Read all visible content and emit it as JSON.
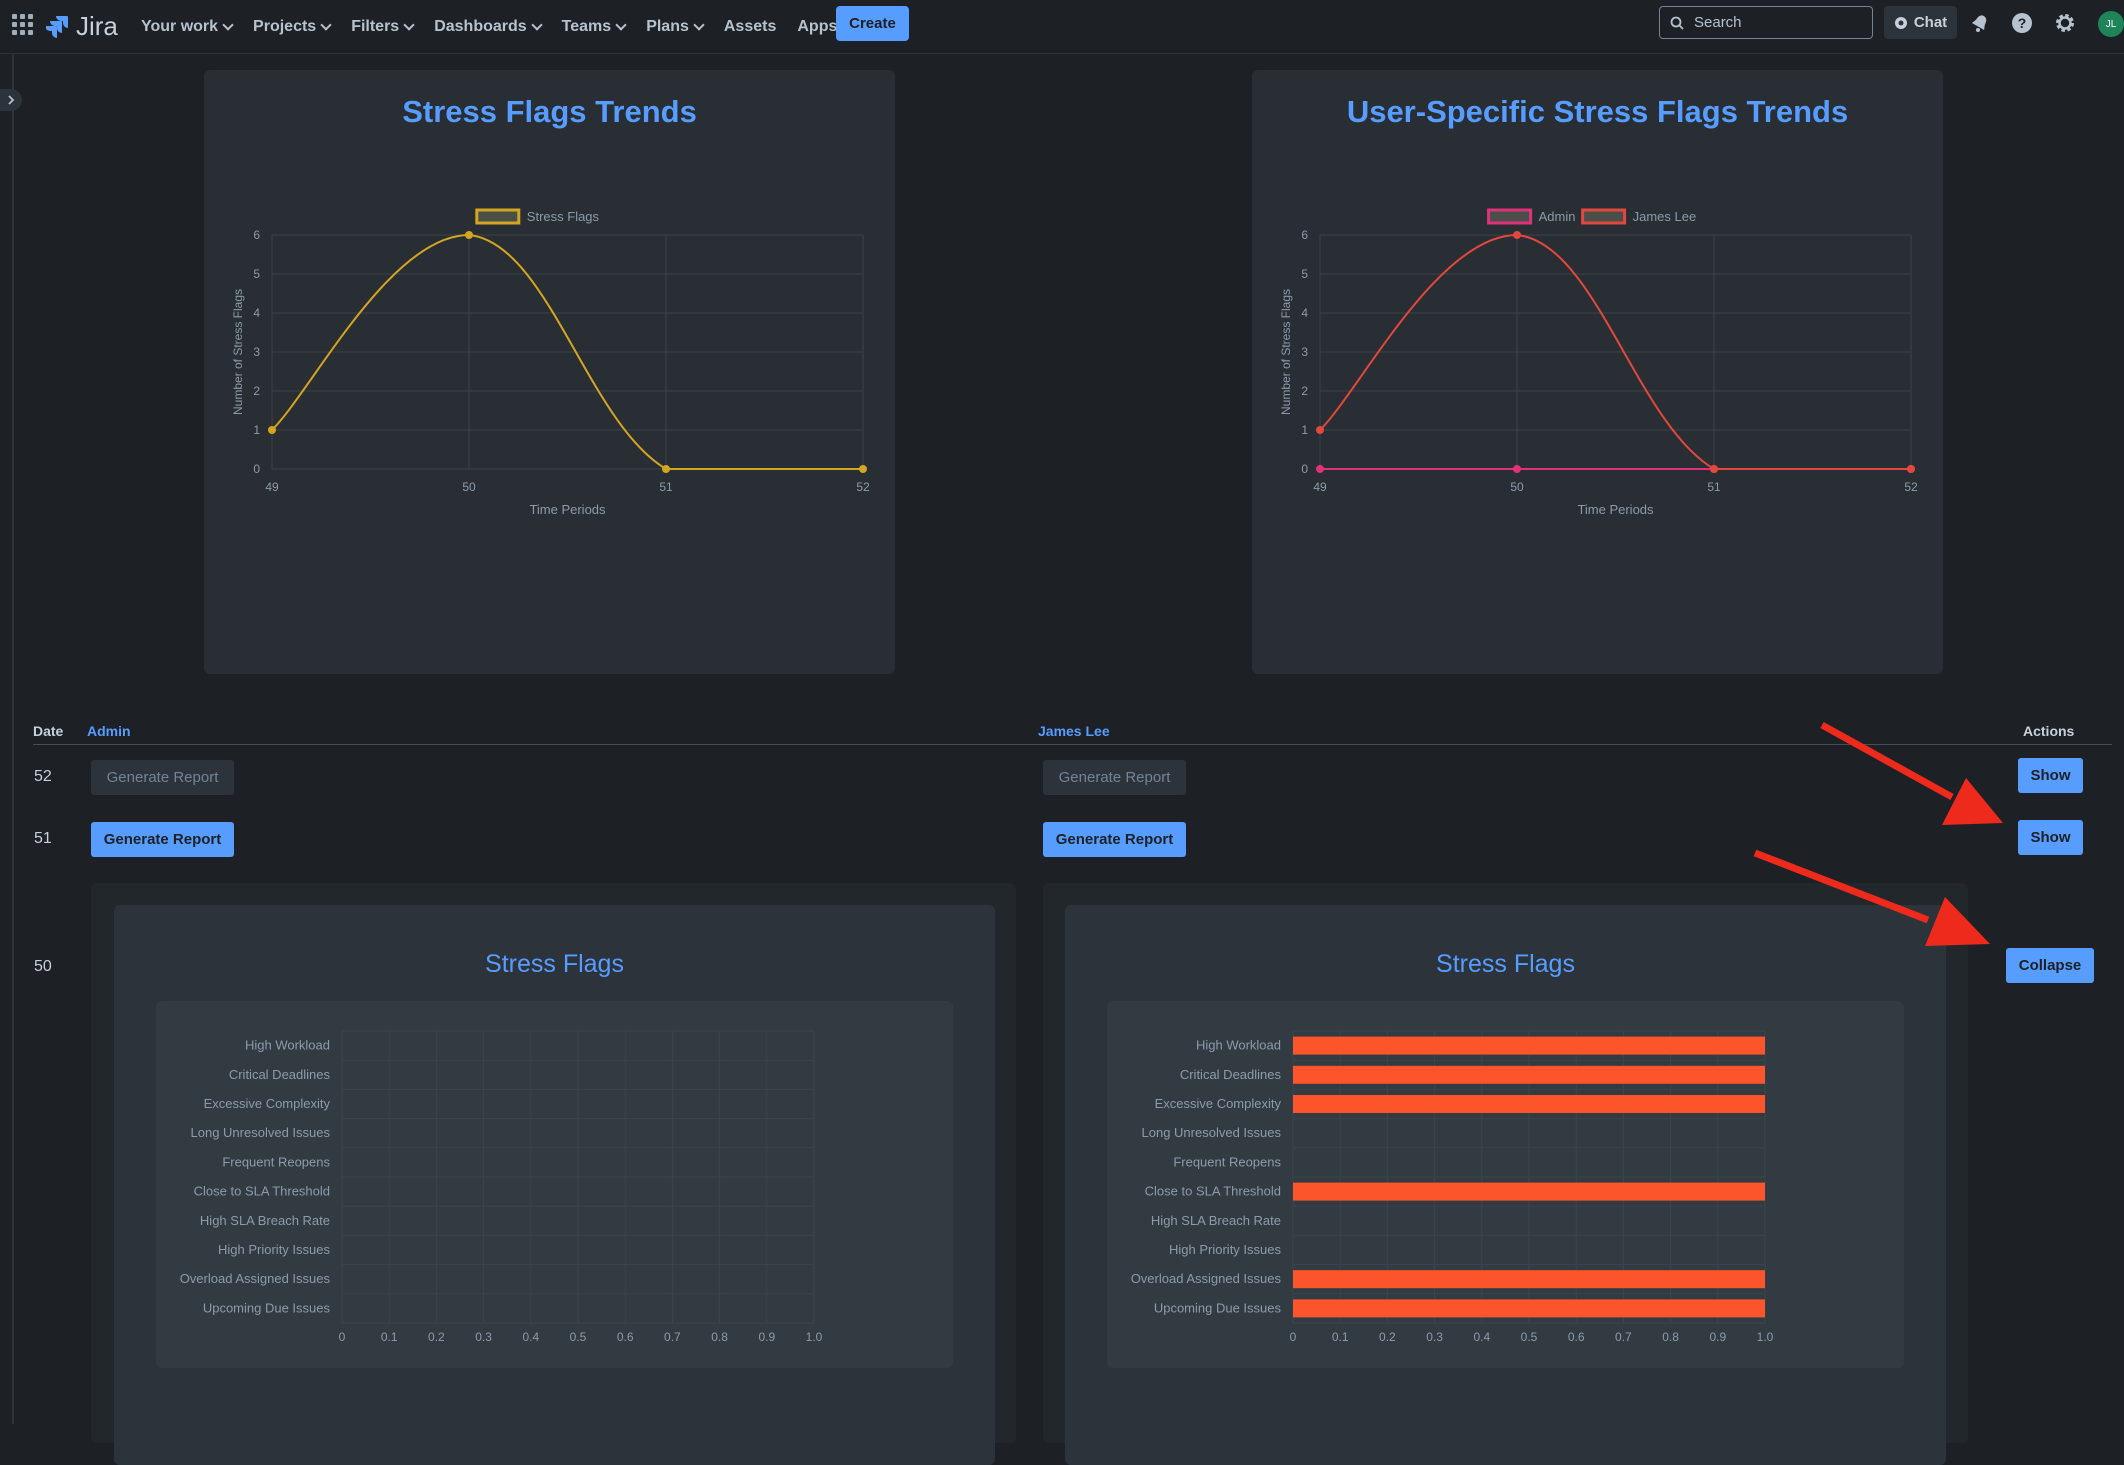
{
  "nav": {
    "logo": "Jira",
    "items": [
      {
        "label": "Your work",
        "dropdown": true
      },
      {
        "label": "Projects",
        "dropdown": true
      },
      {
        "label": "Filters",
        "dropdown": true
      },
      {
        "label": "Dashboards",
        "dropdown": true
      },
      {
        "label": "Teams",
        "dropdown": true
      },
      {
        "label": "Plans",
        "dropdown": true
      },
      {
        "label": "Assets",
        "dropdown": false
      },
      {
        "label": "Apps",
        "dropdown": true
      }
    ],
    "create_label": "Create",
    "search_placeholder": "Search",
    "chat_label": "Chat",
    "avatar_initials": "JL"
  },
  "colors": {
    "accent": "#579dff",
    "yellow_series": "#d4a520",
    "red_series": "#e2483d",
    "pink_series": "#e0317a",
    "bar_fill": "#fc552c"
  },
  "chart_data": [
    {
      "type": "line",
      "title": "Stress Flags Trends",
      "xlabel": "Time Periods",
      "ylabel": "Number of Stress Flags",
      "x": [
        49,
        50,
        51,
        52
      ],
      "ylim": [
        0,
        6
      ],
      "yticks": [
        0,
        1,
        2,
        3,
        4,
        5,
        6
      ],
      "legend_position": "top",
      "series": [
        {
          "name": "Stress Flags",
          "values": [
            1,
            6,
            0,
            0
          ],
          "color": "#d4a520"
        }
      ]
    },
    {
      "type": "line",
      "title": "User-Specific Stress Flags Trends",
      "xlabel": "Time Periods",
      "ylabel": "Number of Stress Flags",
      "x": [
        49,
        50,
        51,
        52
      ],
      "ylim": [
        0,
        6
      ],
      "yticks": [
        0,
        1,
        2,
        3,
        4,
        5,
        6
      ],
      "legend_position": "top",
      "series": [
        {
          "name": "Admin",
          "values": [
            0,
            0,
            0,
            0
          ],
          "color": "#e0317a"
        },
        {
          "name": "James Lee",
          "values": [
            1,
            6,
            0,
            0
          ],
          "color": "#e2483d"
        }
      ]
    },
    {
      "type": "bar",
      "orientation": "horizontal",
      "title": "Stress Flags",
      "categories": [
        "High Workload",
        "Critical Deadlines",
        "Excessive Complexity",
        "Long Unresolved Issues",
        "Frequent Reopens",
        "Close to SLA Threshold",
        "High SLA Breach Rate",
        "High Priority Issues",
        "Overload Assigned Issues",
        "Upcoming Due Issues"
      ],
      "values": [
        0,
        0,
        0,
        0,
        0,
        0,
        0,
        0,
        0,
        0
      ],
      "xlim": [
        0,
        1
      ],
      "xticks": [
        "0",
        "0.1",
        "0.2",
        "0.3",
        "0.4",
        "0.5",
        "0.6",
        "0.7",
        "0.8",
        "0.9",
        "1.0"
      ]
    },
    {
      "type": "bar",
      "orientation": "horizontal",
      "title": "Stress Flags",
      "categories": [
        "High Workload",
        "Critical Deadlines",
        "Excessive Complexity",
        "Long Unresolved Issues",
        "Frequent Reopens",
        "Close to SLA Threshold",
        "High SLA Breach Rate",
        "High Priority Issues",
        "Overload Assigned Issues",
        "Upcoming Due Issues"
      ],
      "values": [
        1,
        1,
        1,
        0,
        0,
        1,
        0,
        0,
        1,
        1
      ],
      "xlim": [
        0,
        1
      ],
      "xticks": [
        "0",
        "0.1",
        "0.2",
        "0.3",
        "0.4",
        "0.5",
        "0.6",
        "0.7",
        "0.8",
        "0.9",
        "1.0"
      ]
    }
  ],
  "table": {
    "headers": {
      "date": "Date",
      "admin": "Admin",
      "james": "James Lee",
      "actions": "Actions"
    },
    "rows": [
      {
        "date": "52",
        "admin_button": "Generate Report",
        "admin_enabled": false,
        "james_button": "Generate Report",
        "james_enabled": false,
        "action": "Show"
      },
      {
        "date": "51",
        "admin_button": "Generate Report",
        "admin_enabled": true,
        "james_button": "Generate Report",
        "james_enabled": true,
        "action": "Show"
      },
      {
        "date": "50",
        "action": "Collapse"
      }
    ]
  }
}
